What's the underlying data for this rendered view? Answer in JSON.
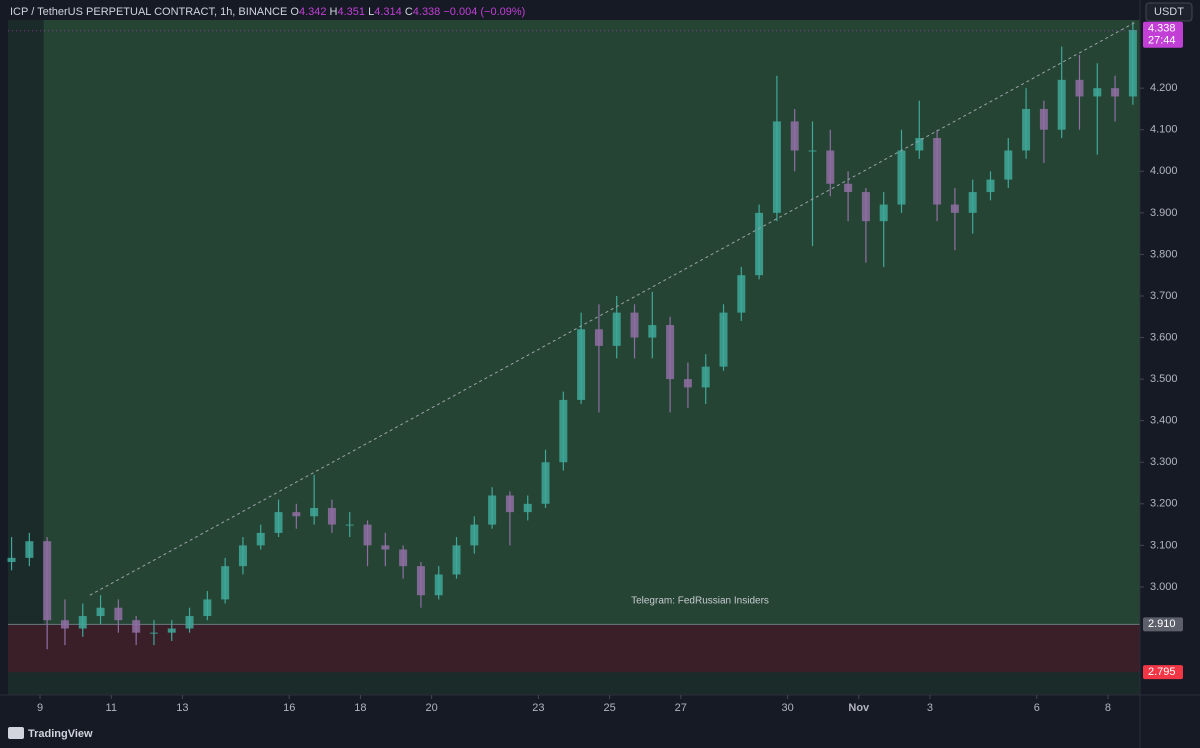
{
  "chart_data": {
    "type": "candlestick",
    "header": {
      "symbol": "ICP / TetherUS PERPETUAL CONTRACT, 1h, BINANCE",
      "o_label": "O",
      "o": 4.342,
      "h_label": "H",
      "h": 4.351,
      "l_label": "L",
      "l": 4.314,
      "c_label": "C",
      "c": 4.338,
      "change": "−0.004 (−0.09%)"
    },
    "currency": "USDT",
    "watermark": "Telegram: FedRussian Insiders",
    "brand": "TradingView",
    "up_color": "#3fa89a",
    "down_color": "#8f6fa3",
    "x": [
      8.2,
      8.7,
      9.2,
      9.7,
      10.2,
      10.7,
      11.2,
      11.7,
      12.2,
      12.7,
      13.2,
      13.7,
      14.2,
      14.7,
      15.2,
      15.7,
      16.2,
      16.7,
      17.2,
      17.7,
      18.2,
      18.7,
      19.2,
      19.7,
      20.2,
      20.7,
      21.2,
      21.7,
      22.2,
      22.7,
      23.2,
      23.7,
      24.2,
      24.7,
      25.2,
      25.7,
      26.2,
      26.7,
      27.2,
      27.7,
      28.2,
      28.7,
      29.2,
      29.7,
      30.2,
      30.7,
      31.2,
      31.7,
      32.2,
      32.7,
      33.2,
      33.7,
      34.2,
      34.7,
      35.2,
      35.7,
      36.2,
      36.7,
      37.2,
      37.7,
      38.2,
      38.7,
      39.2,
      39.7
    ],
    "open": [
      3.06,
      3.07,
      3.11,
      2.92,
      2.9,
      2.93,
      2.95,
      2.92,
      2.89,
      2.89,
      2.9,
      2.93,
      2.97,
      3.05,
      3.1,
      3.13,
      3.18,
      3.17,
      3.19,
      3.15,
      3.15,
      3.1,
      3.09,
      3.05,
      2.98,
      3.03,
      3.1,
      3.15,
      3.22,
      3.18,
      3.2,
      3.3,
      3.45,
      3.62,
      3.58,
      3.66,
      3.6,
      3.63,
      3.5,
      3.48,
      3.53,
      3.66,
      3.75,
      3.9,
      4.12,
      4.05,
      4.05,
      3.97,
      3.95,
      3.88,
      3.92,
      4.05,
      4.08,
      3.92,
      3.9,
      3.95,
      3.98,
      4.05,
      4.15,
      4.1,
      4.22,
      4.18,
      4.2,
      4.18
    ],
    "high": [
      3.12,
      3.13,
      3.12,
      2.97,
      2.96,
      2.98,
      2.97,
      2.93,
      2.92,
      2.92,
      2.95,
      2.99,
      3.07,
      3.12,
      3.15,
      3.21,
      3.2,
      3.27,
      3.21,
      3.18,
      3.16,
      3.13,
      3.1,
      3.06,
      3.05,
      3.12,
      3.17,
      3.24,
      3.23,
      3.22,
      3.33,
      3.47,
      3.66,
      3.68,
      3.7,
      3.68,
      3.71,
      3.65,
      3.54,
      3.56,
      3.68,
      3.77,
      3.92,
      4.23,
      4.15,
      4.12,
      4.1,
      4.0,
      3.96,
      3.95,
      4.1,
      4.17,
      4.1,
      3.96,
      3.98,
      4.0,
      4.08,
      4.2,
      4.17,
      4.3,
      4.28,
      4.26,
      4.23,
      4.36
    ],
    "low": [
      3.04,
      3.05,
      2.85,
      2.86,
      2.88,
      2.91,
      2.89,
      2.86,
      2.86,
      2.87,
      2.89,
      2.92,
      2.96,
      3.03,
      3.09,
      3.12,
      3.14,
      3.15,
      3.13,
      3.12,
      3.05,
      3.05,
      3.02,
      2.95,
      2.97,
      3.02,
      3.08,
      3.14,
      3.1,
      3.16,
      3.19,
      3.28,
      3.44,
      3.42,
      3.55,
      3.55,
      3.55,
      3.42,
      3.43,
      3.44,
      3.52,
      3.64,
      3.74,
      3.88,
      4.0,
      3.82,
      3.94,
      3.88,
      3.78,
      3.77,
      3.9,
      4.03,
      3.88,
      3.81,
      3.85,
      3.93,
      3.96,
      4.03,
      4.02,
      4.08,
      4.1,
      4.04,
      4.12,
      4.16
    ],
    "close": [
      3.07,
      3.11,
      2.92,
      2.9,
      2.93,
      2.95,
      2.92,
      2.89,
      2.89,
      2.9,
      2.93,
      2.97,
      3.05,
      3.1,
      3.13,
      3.18,
      3.17,
      3.19,
      3.15,
      3.15,
      3.1,
      3.09,
      3.05,
      2.98,
      3.03,
      3.1,
      3.15,
      3.22,
      3.18,
      3.2,
      3.3,
      3.45,
      3.62,
      3.58,
      3.66,
      3.6,
      3.63,
      3.5,
      3.48,
      3.53,
      3.66,
      3.75,
      3.9,
      4.12,
      4.05,
      4.05,
      3.97,
      3.95,
      3.88,
      3.92,
      4.05,
      4.08,
      3.92,
      3.9,
      3.95,
      3.98,
      4.05,
      4.15,
      4.1,
      4.22,
      4.18,
      4.2,
      4.18,
      4.34
    ],
    "xlim": [
      8.1,
      39.9
    ],
    "ylim": [
      2.74,
      4.364
    ],
    "xticks": [
      9,
      11,
      13,
      16,
      18,
      20,
      23,
      25,
      27,
      30,
      {
        "value": 32,
        "label": "Nov"
      },
      {
        "value": 34,
        "label": "3"
      },
      {
        "value": 37,
        "label": "6"
      },
      {
        "value": 39,
        "label": "8"
      }
    ],
    "yticks": [
      {
        "value": 3.0,
        "label": "3.000"
      },
      {
        "value": 3.1,
        "label": "3.100"
      },
      {
        "value": 3.2,
        "label": "3.200"
      },
      {
        "value": 3.3,
        "label": "3.300"
      },
      {
        "value": 3.4,
        "label": "3.400"
      },
      {
        "value": 3.5,
        "label": "3.500"
      },
      {
        "value": 3.6,
        "label": "3.600"
      },
      {
        "value": 3.7,
        "label": "3.700"
      },
      {
        "value": 3.8,
        "label": "3.800"
      },
      {
        "value": 3.9,
        "label": "3.900"
      },
      {
        "value": 4.0,
        "label": "4.000"
      },
      {
        "value": 4.1,
        "label": "4.100"
      },
      {
        "value": 4.2,
        "label": "4.200"
      }
    ],
    "long_zone": {
      "x_start": 9.1,
      "from": 2.91,
      "color": "#254434"
    },
    "stop_zone": {
      "from": 2.91,
      "to": 2.795,
      "color": "#3a1f29"
    },
    "trend_line": {
      "x": [
        10.4,
        39.8
      ],
      "y": [
        2.98,
        4.36
      ]
    },
    "last_price": {
      "value": 4.338,
      "countdown": "27:44",
      "color": "#c23fd6"
    },
    "levels": [
      {
        "value": 2.91,
        "label": "2.910",
        "color": "#5d606b"
      },
      {
        "value": 2.795,
        "label": "2.795",
        "color": "#f23645"
      }
    ]
  }
}
